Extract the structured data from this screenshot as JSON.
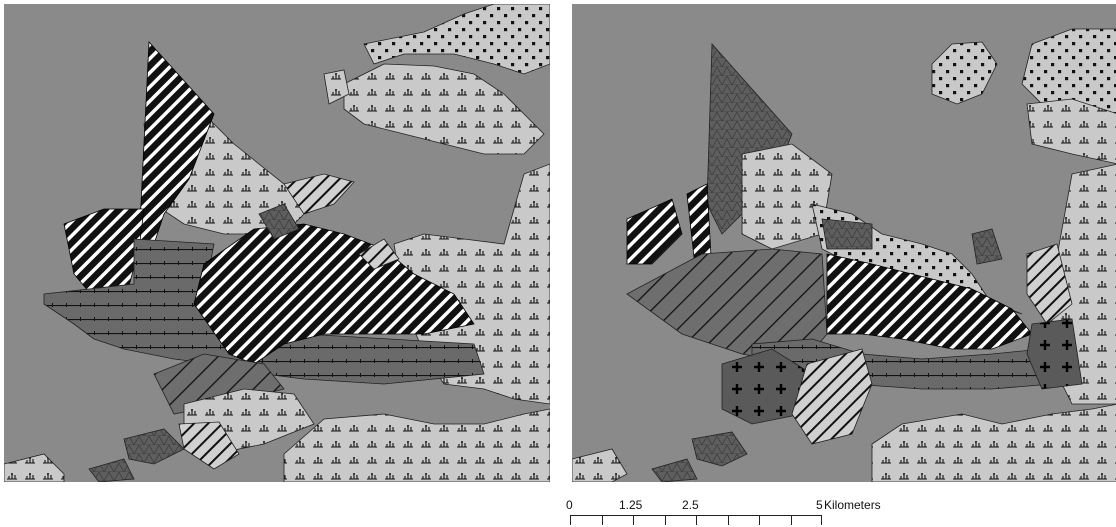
{
  "maps": [
    {
      "id": "left"
    },
    {
      "id": "right"
    }
  ],
  "scale_bar": {
    "labels": [
      "0",
      "1.25",
      "2.5",
      "5"
    ],
    "unit": "Kilometers"
  },
  "colors": {
    "water": "#8a8a8a",
    "land_light": "#c9c9c9",
    "land_dark": "#6e6e6e",
    "ink": "#000000"
  }
}
